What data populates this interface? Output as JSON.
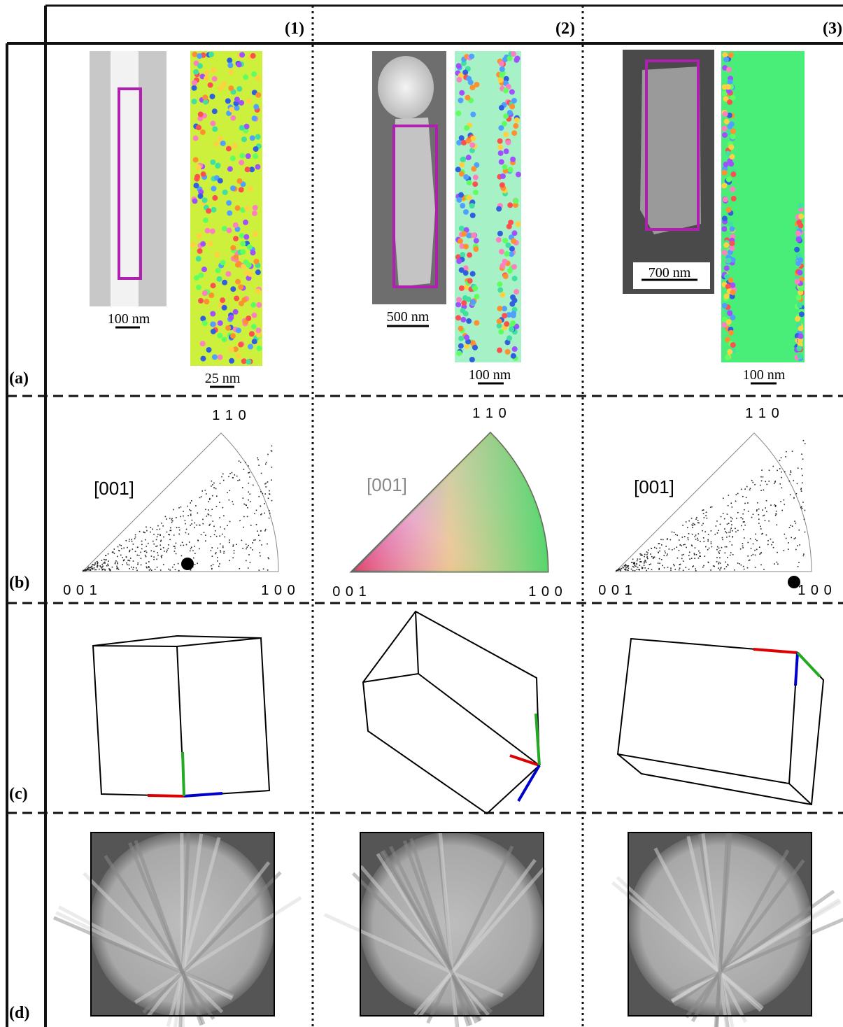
{
  "columns": [
    "(1)",
    "(2)",
    "(3)"
  ],
  "rows": [
    "(a)",
    "(b)",
    "(c)",
    "(d)"
  ],
  "panels": [
    {
      "sem_scale": "100 nm",
      "map_scale": "25 nm",
      "ipf": {
        "top": "1 1 0",
        "direction": "[001]",
        "left": "0 0 1",
        "right": "1 0 0"
      }
    },
    {
      "sem_scale": "500 nm",
      "map_scale": "100 nm",
      "ipf": {
        "top": "1 1 0",
        "direction": "[001]",
        "left": "0 0 1",
        "right": "1 0 0"
      }
    },
    {
      "sem_scale": "700 nm",
      "map_scale": "100 nm",
      "ipf": {
        "top": "1 1 0",
        "direction": "[001]",
        "left": "0 0 1",
        "right": "1 0 0"
      }
    }
  ]
}
